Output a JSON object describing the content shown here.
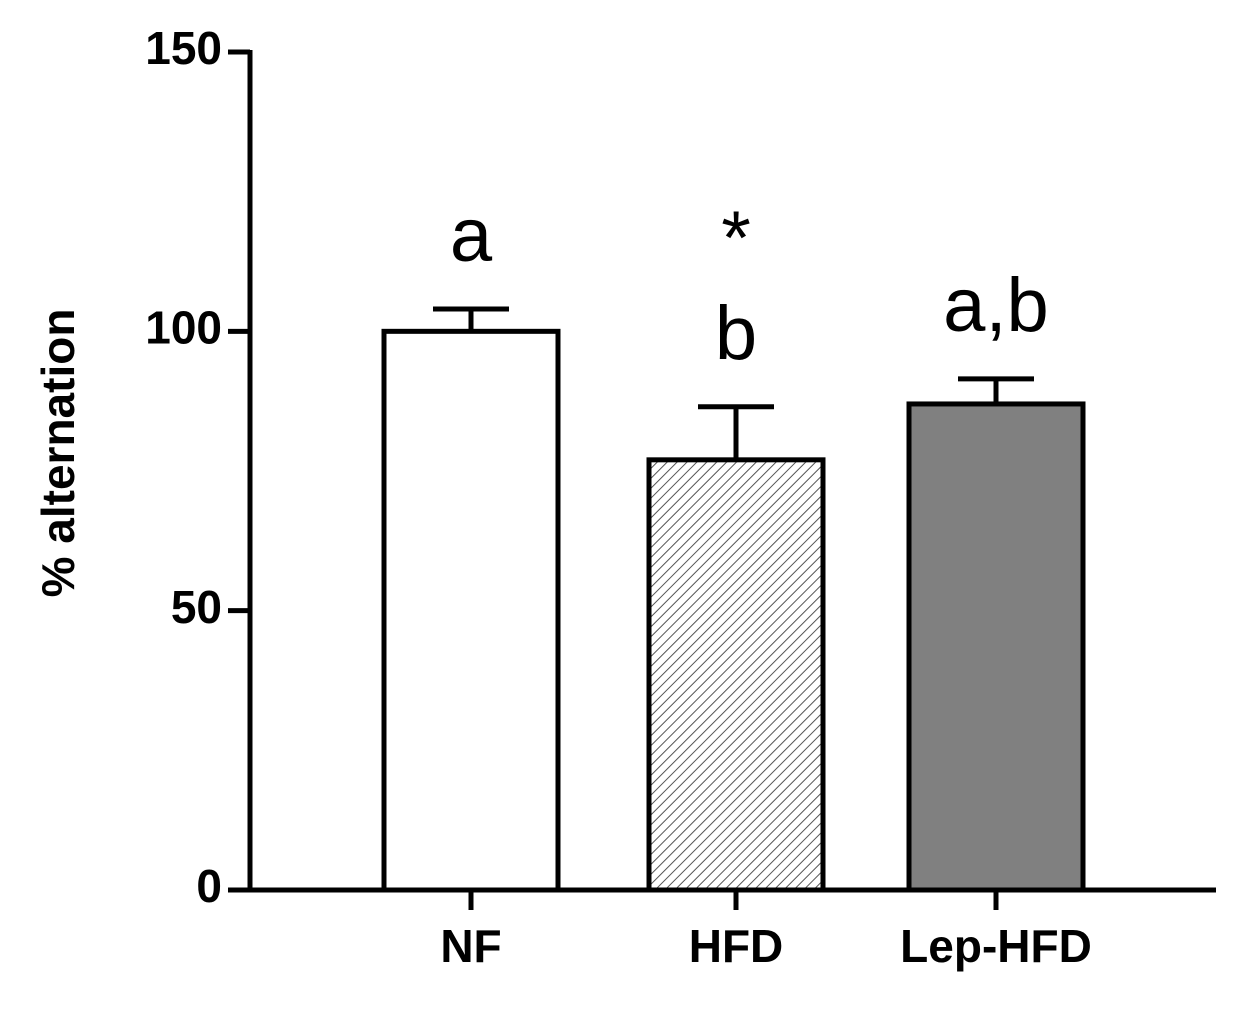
{
  "chart_data": {
    "type": "bar",
    "y_label": "% alternation",
    "categories": [
      "NF",
      "HFD",
      "Lep-HFD"
    ],
    "values": [
      100,
      77,
      87
    ],
    "errors": [
      4,
      9.5,
      4.5
    ],
    "colors": [
      "#ffffff",
      "#ffffff",
      "#808080"
    ],
    "hatched": [
      false,
      true,
      false
    ],
    "annotations": [
      [
        "a"
      ],
      [
        "*",
        "b"
      ],
      [
        "a,b"
      ]
    ],
    "ylim": [
      0,
      150
    ],
    "yticks": [
      0,
      50,
      100,
      150
    ],
    "grid": false
  }
}
